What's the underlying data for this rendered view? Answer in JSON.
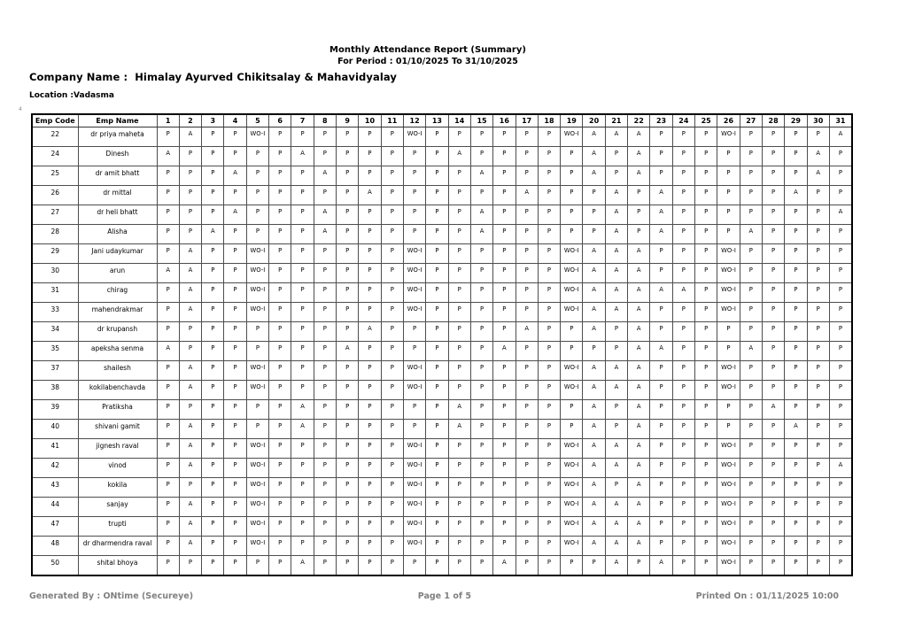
{
  "header": {
    "report_title": "Monthly Attendance Report (Summary)",
    "period_line": "For Period  : 01/10/2025 To 31/10/2025",
    "company_label": "Company Name :",
    "company_value": "Himalay Ayurved Chikitsalay & Mahavidyalay",
    "location_label": "Location  :",
    "location_value": "Vadasma",
    "stray_mark": "4"
  },
  "table": {
    "columns": {
      "emp_code": "Emp Code",
      "emp_name": "Emp Name"
    },
    "day_headers": [
      "1",
      "2",
      "3",
      "4",
      "5",
      "6",
      "7",
      "8",
      "9",
      "10",
      "11",
      "12",
      "13",
      "14",
      "15",
      "16",
      "17",
      "18",
      "19",
      "20",
      "21",
      "22",
      "23",
      "24",
      "25",
      "26",
      "27",
      "28",
      "29",
      "30",
      "31"
    ],
    "rows": [
      {
        "code": "22",
        "name": "dr priya maheta",
        "days": [
          "P",
          "A",
          "P",
          "P",
          "WO-I",
          "P",
          "P",
          "P",
          "P",
          "P",
          "P",
          "WO-I",
          "P",
          "P",
          "P",
          "P",
          "P",
          "P",
          "WO-I",
          "A",
          "A",
          "A",
          "P",
          "P",
          "P",
          "WO-I",
          "P",
          "P",
          "P",
          "P",
          "A"
        ]
      },
      {
        "code": "24",
        "name": "Dinesh",
        "days": [
          "A",
          "P",
          "P",
          "P",
          "P",
          "P",
          "A",
          "P",
          "P",
          "P",
          "P",
          "P",
          "P",
          "A",
          "P",
          "P",
          "P",
          "P",
          "P",
          "A",
          "P",
          "A",
          "P",
          "P",
          "P",
          "P",
          "P",
          "P",
          "P",
          "A",
          "P"
        ]
      },
      {
        "code": "25",
        "name": "dr amit bhatt",
        "days": [
          "P",
          "P",
          "P",
          "A",
          "P",
          "P",
          "P",
          "A",
          "P",
          "P",
          "P",
          "P",
          "P",
          "P",
          "A",
          "P",
          "P",
          "P",
          "P",
          "A",
          "P",
          "A",
          "P",
          "P",
          "P",
          "P",
          "P",
          "P",
          "P",
          "A",
          "P"
        ]
      },
      {
        "code": "26",
        "name": "dr mittal",
        "days": [
          "P",
          "P",
          "P",
          "P",
          "P",
          "P",
          "P",
          "P",
          "P",
          "A",
          "P",
          "P",
          "P",
          "P",
          "P",
          "P",
          "A",
          "P",
          "P",
          "P",
          "A",
          "P",
          "A",
          "P",
          "P",
          "P",
          "P",
          "P",
          "A",
          "P",
          "P"
        ]
      },
      {
        "code": "27",
        "name": "dr heli bhatt",
        "days": [
          "P",
          "P",
          "P",
          "A",
          "P",
          "P",
          "P",
          "A",
          "P",
          "P",
          "P",
          "P",
          "P",
          "P",
          "A",
          "P",
          "P",
          "P",
          "P",
          "P",
          "A",
          "P",
          "A",
          "P",
          "P",
          "P",
          "P",
          "P",
          "P",
          "P",
          "A"
        ]
      },
      {
        "code": "28",
        "name": "Alisha",
        "days": [
          "P",
          "P",
          "A",
          "P",
          "P",
          "P",
          "P",
          "A",
          "P",
          "P",
          "P",
          "P",
          "P",
          "P",
          "A",
          "P",
          "P",
          "P",
          "P",
          "P",
          "A",
          "P",
          "A",
          "P",
          "P",
          "P",
          "A",
          "P",
          "P",
          "P",
          "P"
        ]
      },
      {
        "code": "29",
        "name": "Jani udaykumar",
        "days": [
          "P",
          "A",
          "P",
          "P",
          "WO-I",
          "P",
          "P",
          "P",
          "P",
          "P",
          "P",
          "WO-I",
          "P",
          "P",
          "P",
          "P",
          "P",
          "P",
          "WO-I",
          "A",
          "A",
          "A",
          "P",
          "P",
          "P",
          "WO-I",
          "P",
          "P",
          "P",
          "P",
          "P"
        ]
      },
      {
        "code": "30",
        "name": "arun",
        "days": [
          "A",
          "A",
          "P",
          "P",
          "WO-I",
          "P",
          "P",
          "P",
          "P",
          "P",
          "P",
          "WO-I",
          "P",
          "P",
          "P",
          "P",
          "P",
          "P",
          "WO-I",
          "A",
          "A",
          "A",
          "P",
          "P",
          "P",
          "WO-I",
          "P",
          "P",
          "P",
          "P",
          "P"
        ]
      },
      {
        "code": "31",
        "name": "chirag",
        "days": [
          "P",
          "A",
          "P",
          "P",
          "WO-I",
          "P",
          "P",
          "P",
          "P",
          "P",
          "P",
          "WO-I",
          "P",
          "P",
          "P",
          "P",
          "P",
          "P",
          "WO-I",
          "A",
          "A",
          "A",
          "A",
          "A",
          "P",
          "WO-I",
          "P",
          "P",
          "P",
          "P",
          "P"
        ]
      },
      {
        "code": "33",
        "name": "mahendrakmar",
        "days": [
          "P",
          "A",
          "P",
          "P",
          "WO-I",
          "P",
          "P",
          "P",
          "P",
          "P",
          "P",
          "WO-I",
          "P",
          "P",
          "P",
          "P",
          "P",
          "P",
          "WO-I",
          "A",
          "A",
          "A",
          "P",
          "P",
          "P",
          "WO-I",
          "P",
          "P",
          "P",
          "P",
          "P"
        ]
      },
      {
        "code": "34",
        "name": "dr krupansh",
        "days": [
          "P",
          "P",
          "P",
          "P",
          "P",
          "P",
          "P",
          "P",
          "P",
          "A",
          "P",
          "P",
          "P",
          "P",
          "P",
          "P",
          "A",
          "P",
          "P",
          "A",
          "P",
          "A",
          "P",
          "P",
          "P",
          "P",
          "P",
          "P",
          "P",
          "P",
          "P"
        ]
      },
      {
        "code": "35",
        "name": "apeksha senma",
        "days": [
          "A",
          "P",
          "P",
          "P",
          "P",
          "P",
          "P",
          "P",
          "A",
          "P",
          "P",
          "P",
          "P",
          "P",
          "P",
          "A",
          "P",
          "P",
          "P",
          "P",
          "P",
          "A",
          "A",
          "P",
          "P",
          "P",
          "A",
          "P",
          "P",
          "P",
          "P"
        ]
      },
      {
        "code": "37",
        "name": "shailesh",
        "days": [
          "P",
          "A",
          "P",
          "P",
          "WO-I",
          "P",
          "P",
          "P",
          "P",
          "P",
          "P",
          "WO-I",
          "P",
          "P",
          "P",
          "P",
          "P",
          "P",
          "WO-I",
          "A",
          "A",
          "A",
          "P",
          "P",
          "P",
          "WO-I",
          "P",
          "P",
          "P",
          "P",
          "P"
        ]
      },
      {
        "code": "38",
        "name": "kokilabenchavda",
        "days": [
          "P",
          "A",
          "P",
          "P",
          "WO-I",
          "P",
          "P",
          "P",
          "P",
          "P",
          "P",
          "WO-I",
          "P",
          "P",
          "P",
          "P",
          "P",
          "P",
          "WO-I",
          "A",
          "A",
          "A",
          "P",
          "P",
          "P",
          "WO-I",
          "P",
          "P",
          "P",
          "P",
          "P"
        ]
      },
      {
        "code": "39",
        "name": "Pratiksha",
        "days": [
          "P",
          "P",
          "P",
          "P",
          "P",
          "P",
          "A",
          "P",
          "P",
          "P",
          "P",
          "P",
          "P",
          "A",
          "P",
          "P",
          "P",
          "P",
          "P",
          "A",
          "P",
          "A",
          "P",
          "P",
          "P",
          "P",
          "P",
          "A",
          "P",
          "P",
          "P"
        ]
      },
      {
        "code": "40",
        "name": "shivani gamit",
        "days": [
          "P",
          "A",
          "P",
          "P",
          "P",
          "P",
          "A",
          "P",
          "P",
          "P",
          "P",
          "P",
          "P",
          "A",
          "P",
          "P",
          "P",
          "P",
          "P",
          "A",
          "P",
          "A",
          "P",
          "P",
          "P",
          "P",
          "P",
          "P",
          "A",
          "P",
          "P"
        ]
      },
      {
        "code": "41",
        "name": "jignesh raval",
        "days": [
          "P",
          "A",
          "P",
          "P",
          "WO-I",
          "P",
          "P",
          "P",
          "P",
          "P",
          "P",
          "WO-I",
          "P",
          "P",
          "P",
          "P",
          "P",
          "P",
          "WO-I",
          "A",
          "A",
          "A",
          "P",
          "P",
          "P",
          "WO-I",
          "P",
          "P",
          "P",
          "P",
          "P"
        ]
      },
      {
        "code": "42",
        "name": "vinod",
        "days": [
          "P",
          "A",
          "P",
          "P",
          "WO-I",
          "P",
          "P",
          "P",
          "P",
          "P",
          "P",
          "WO-I",
          "P",
          "P",
          "P",
          "P",
          "P",
          "P",
          "WO-I",
          "A",
          "A",
          "A",
          "P",
          "P",
          "P",
          "WO-I",
          "P",
          "P",
          "P",
          "P",
          "A"
        ]
      },
      {
        "code": "43",
        "name": "kokila",
        "days": [
          "P",
          "P",
          "P",
          "P",
          "WO-I",
          "P",
          "P",
          "P",
          "P",
          "P",
          "P",
          "WO-I",
          "P",
          "P",
          "P",
          "P",
          "P",
          "P",
          "WO-I",
          "A",
          "P",
          "A",
          "P",
          "P",
          "P",
          "WO-I",
          "P",
          "P",
          "P",
          "P",
          "P"
        ]
      },
      {
        "code": "44",
        "name": "sanjay",
        "days": [
          "P",
          "A",
          "P",
          "P",
          "WO-I",
          "P",
          "P",
          "P",
          "P",
          "P",
          "P",
          "WO-I",
          "P",
          "P",
          "P",
          "P",
          "P",
          "P",
          "WO-I",
          "A",
          "A",
          "A",
          "P",
          "P",
          "P",
          "WO-I",
          "P",
          "P",
          "P",
          "P",
          "P"
        ]
      },
      {
        "code": "47",
        "name": "trupti",
        "days": [
          "P",
          "A",
          "P",
          "P",
          "WO-I",
          "P",
          "P",
          "P",
          "P",
          "P",
          "P",
          "WO-I",
          "P",
          "P",
          "P",
          "P",
          "P",
          "P",
          "WO-I",
          "A",
          "A",
          "A",
          "P",
          "P",
          "P",
          "WO-I",
          "P",
          "P",
          "P",
          "P",
          "P"
        ]
      },
      {
        "code": "48",
        "name": "dr dharmendra raval",
        "days": [
          "P",
          "A",
          "P",
          "P",
          "WO-I",
          "P",
          "P",
          "P",
          "P",
          "P",
          "P",
          "WO-I",
          "P",
          "P",
          "P",
          "P",
          "P",
          "P",
          "WO-I",
          "A",
          "A",
          "A",
          "P",
          "P",
          "P",
          "WO-I",
          "P",
          "P",
          "P",
          "P",
          "P"
        ]
      },
      {
        "code": "50",
        "name": "shital bhoya",
        "days": [
          "P",
          "P",
          "P",
          "P",
          "P",
          "P",
          "A",
          "P",
          "P",
          "P",
          "P",
          "P",
          "P",
          "P",
          "P",
          "A",
          "P",
          "P",
          "P",
          "P",
          "A",
          "P",
          "A",
          "P",
          "P",
          "WO-I",
          "P",
          "P",
          "P",
          "P",
          "P"
        ]
      }
    ]
  },
  "footer": {
    "generated_by": "Generated By : ONtime (Secureye)",
    "page_info": "Page 1 of 5",
    "printed_on": "Printed On : 01/11/2025 10:00"
  }
}
